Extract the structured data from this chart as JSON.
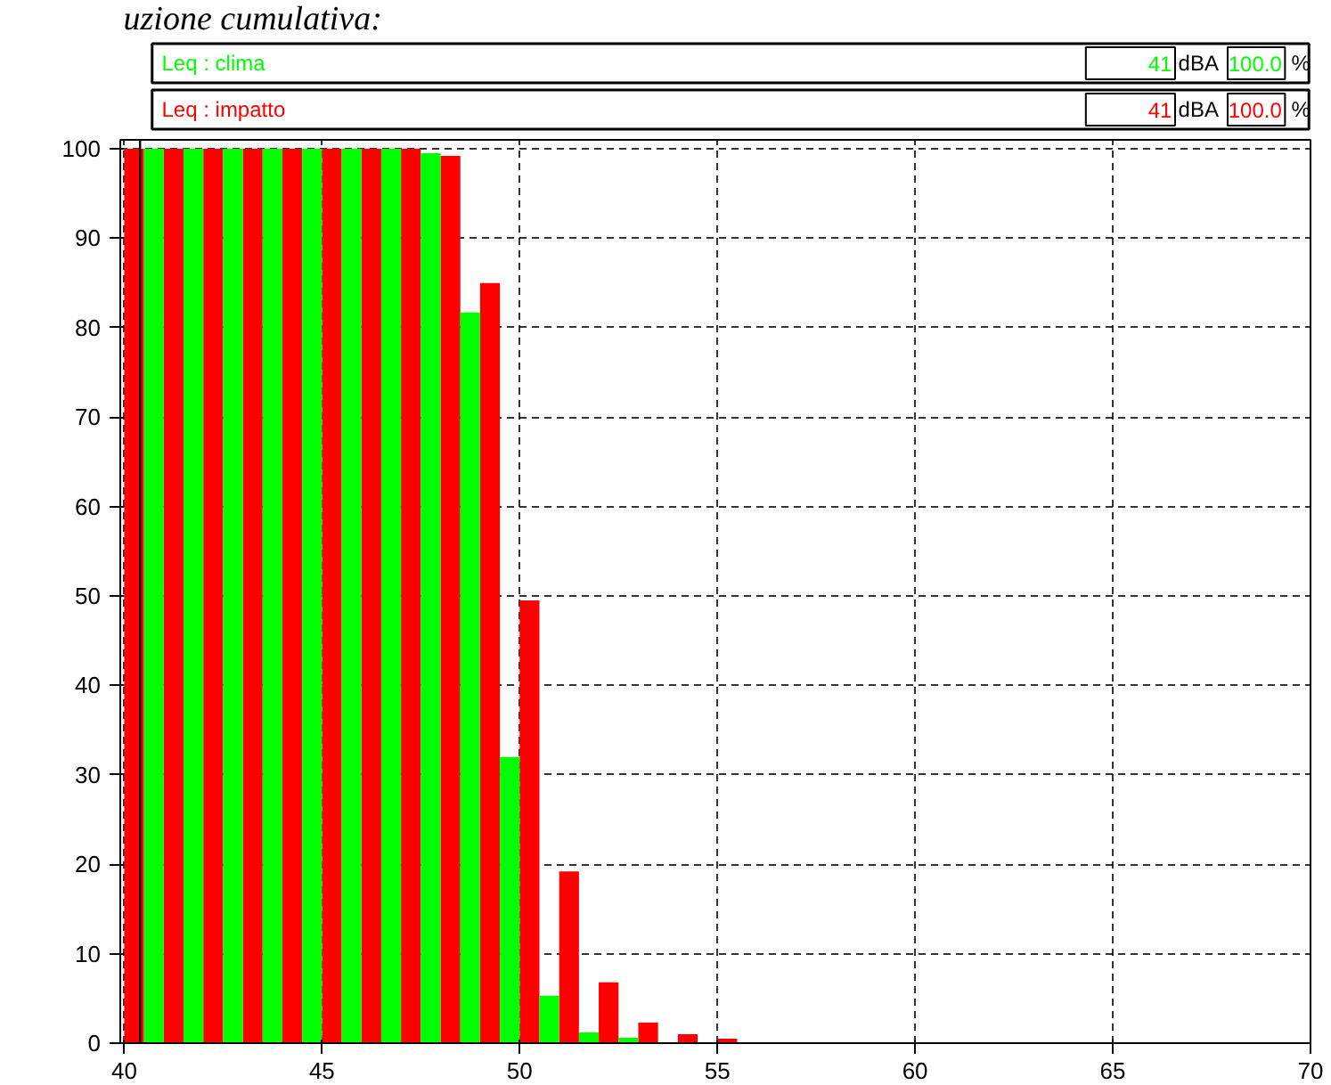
{
  "chart_data": {
    "type": "bar",
    "title": "uzione cumulativa:",
    "x": [
      40,
      41,
      42,
      43,
      44,
      45,
      46,
      47,
      48,
      49,
      50,
      51,
      52,
      53,
      54,
      55
    ],
    "series": [
      {
        "name": "Leq : impatto",
        "color": "#ff0000",
        "values": [
          100,
          100,
          100,
          100,
          100,
          100,
          100,
          100,
          99.2,
          85,
          49.5,
          19.2,
          6.8,
          2.3,
          1.0,
          0.5
        ]
      },
      {
        "name": "Leq : clima",
        "color": "#00ff00",
        "values": [
          null,
          100,
          100,
          100,
          100,
          100,
          100,
          100,
          99.5,
          81.7,
          32,
          5.3,
          1.2,
          0.6,
          null,
          null
        ]
      }
    ],
    "annotations": [
      "41",
      "dBA",
      "100.0",
      "%",
      "41",
      "dBA",
      "100.0",
      "%"
    ],
    "xlim": [
      39.9,
      70
    ],
    "xticks": [
      40,
      45,
      50,
      55,
      60,
      65,
      70
    ],
    "ylim": [
      0,
      101
    ],
    "yticks": [
      0,
      10,
      20,
      30,
      40,
      50,
      60,
      70,
      80,
      90,
      100
    ],
    "ref_lines": [
      {
        "axis": "x",
        "value": 40.4,
        "label": null
      }
    ],
    "grid": true,
    "legend": "top"
  }
}
